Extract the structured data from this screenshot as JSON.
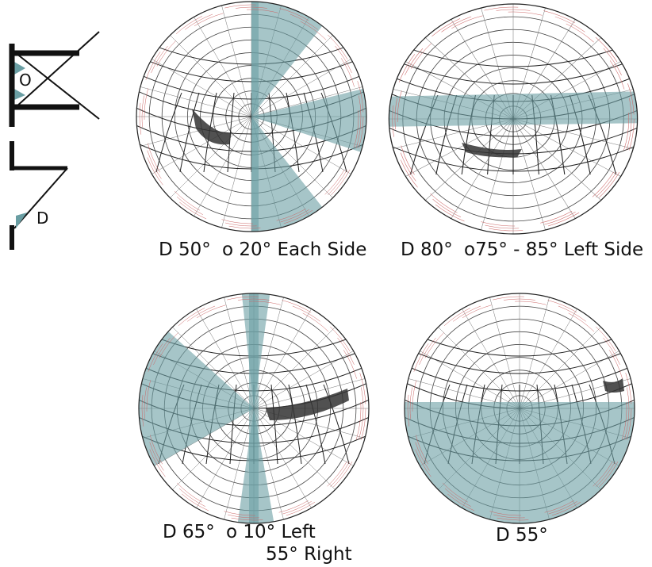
{
  "icon": {
    "overhang_label": "O",
    "fin_label": "D"
  },
  "panels": [
    {
      "caption": [
        "D 50°",
        "o 20° Each Side"
      ]
    },
    {
      "caption": [
        "D 80°",
        "o75° - 85° Left Side"
      ]
    },
    {
      "caption": [
        "D 65°",
        "o 10° Left",
        "55° Right"
      ]
    },
    {
      "caption": [
        "D 55°"
      ]
    }
  ]
}
